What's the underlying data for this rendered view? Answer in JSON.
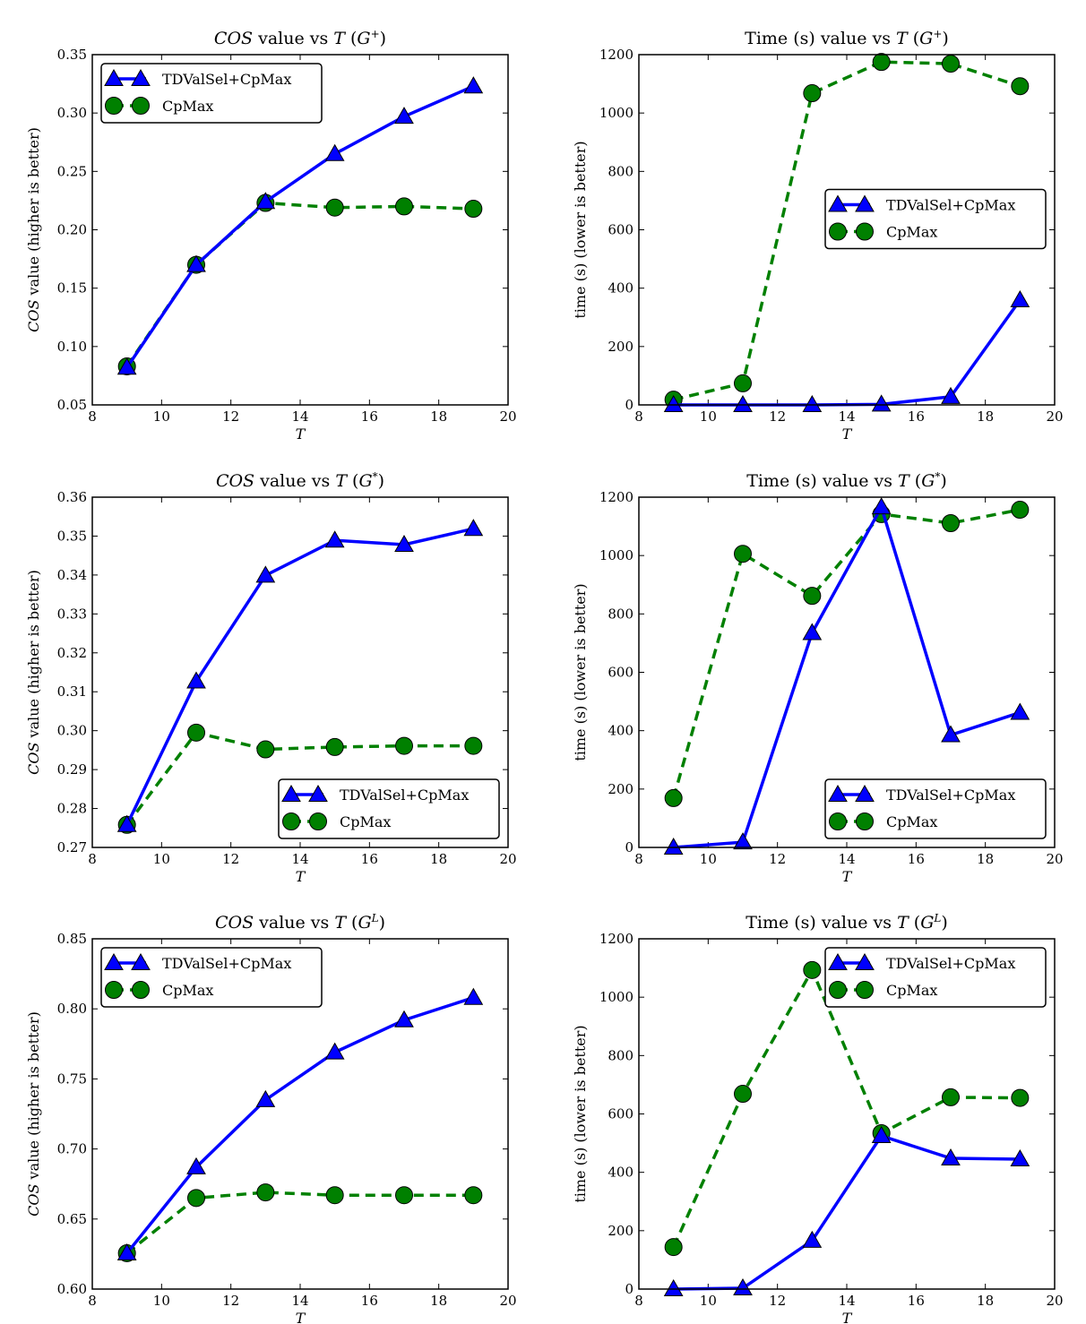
{
  "chart_data": [
    {
      "type": "line",
      "title": [
        {
          "text": "COS",
          "italic": true
        },
        {
          "text": " value vs "
        },
        {
          "text": "T",
          "italic": true
        },
        {
          "text": " ("
        },
        {
          "text": "G",
          "italic": true
        },
        {
          "text": "+",
          "sup": true
        },
        {
          "text": ")"
        }
      ],
      "xlabel": "T",
      "ylabel": [
        {
          "text": "COS",
          "italic": true
        },
        {
          "text": " value (higher is better)"
        }
      ],
      "xlim": [
        8,
        20
      ],
      "ylim": [
        0.05,
        0.35
      ],
      "xticks": [
        "8",
        "10",
        "12",
        "14",
        "16",
        "18",
        "20"
      ],
      "yticks": [
        "0.05",
        "0.10",
        "0.15",
        "0.20",
        "0.25",
        "0.30",
        "0.35"
      ],
      "legend": "upper-left",
      "x": [
        9,
        11,
        13,
        15,
        17,
        19
      ],
      "series": [
        {
          "name": "TDValSel+CpMax",
          "values": [
            0.082,
            0.17,
            0.224,
            0.265,
            0.297,
            0.323
          ],
          "color": "#0000ff",
          "marker": "triangle",
          "style": "solid"
        },
        {
          "name": "CpMax",
          "values": [
            0.083,
            0.17,
            0.223,
            0.219,
            0.22,
            0.218
          ],
          "color": "#008000",
          "marker": "circle",
          "style": "dashed"
        }
      ]
    },
    {
      "type": "line",
      "title": [
        {
          "text": "Time (s) value vs "
        },
        {
          "text": "T",
          "italic": true
        },
        {
          "text": " ("
        },
        {
          "text": "G",
          "italic": true
        },
        {
          "text": "+",
          "sup": true
        },
        {
          "text": ")"
        }
      ],
      "xlabel": "T",
      "ylabel": [
        {
          "text": "time (s) (lower is better)"
        }
      ],
      "xlim": [
        8,
        20
      ],
      "ylim": [
        0,
        1200
      ],
      "xticks": [
        "8",
        "10",
        "12",
        "14",
        "16",
        "18",
        "20"
      ],
      "yticks": [
        "0",
        "200",
        "400",
        "600",
        "800",
        "1000",
        "1200"
      ],
      "legend": "center-right",
      "x": [
        9,
        11,
        13,
        15,
        17,
        19
      ],
      "series": [
        {
          "name": "TDValSel+CpMax",
          "values": [
            0,
            0,
            0,
            2,
            28,
            359
          ],
          "color": "#0000ff",
          "marker": "triangle",
          "style": "solid"
        },
        {
          "name": "CpMax",
          "values": [
            18,
            74,
            1068,
            1175,
            1169,
            1092
          ],
          "color": "#008000",
          "marker": "circle",
          "style": "dashed"
        }
      ]
    },
    {
      "type": "line",
      "title": [
        {
          "text": "COS",
          "italic": true
        },
        {
          "text": " value vs "
        },
        {
          "text": "T",
          "italic": true
        },
        {
          "text": " ("
        },
        {
          "text": "G",
          "italic": true
        },
        {
          "text": "*",
          "sup": true
        },
        {
          "text": ")"
        }
      ],
      "xlabel": "T",
      "ylabel": [
        {
          "text": "COS",
          "italic": true
        },
        {
          "text": " value (higher is better)"
        }
      ],
      "xlim": [
        8,
        20
      ],
      "ylim": [
        0.27,
        0.36
      ],
      "xticks": [
        "8",
        "10",
        "12",
        "14",
        "16",
        "18",
        "20"
      ],
      "yticks": [
        "0.27",
        "0.28",
        "0.29",
        "0.30",
        "0.31",
        "0.32",
        "0.33",
        "0.34",
        "0.35",
        "0.36"
      ],
      "legend": "lower-right",
      "x": [
        9,
        11,
        13,
        15,
        17,
        19
      ],
      "series": [
        {
          "name": "TDValSel+CpMax",
          "values": [
            0.2758,
            0.3127,
            0.3399,
            0.3489,
            0.3478,
            0.3519
          ],
          "color": "#0000ff",
          "marker": "triangle",
          "style": "solid"
        },
        {
          "name": "CpMax",
          "values": [
            0.2758,
            0.2995,
            0.2952,
            0.2958,
            0.2961,
            0.2961
          ],
          "color": "#008000",
          "marker": "circle",
          "style": "dashed"
        }
      ]
    },
    {
      "type": "line",
      "title": [
        {
          "text": "Time (s) value vs "
        },
        {
          "text": "T",
          "italic": true
        },
        {
          "text": " ("
        },
        {
          "text": "G",
          "italic": true
        },
        {
          "text": "*",
          "sup": true
        },
        {
          "text": ")"
        }
      ],
      "xlabel": "T",
      "ylabel": [
        {
          "text": "time (s) (lower is better)"
        }
      ],
      "xlim": [
        8,
        20
      ],
      "ylim": [
        0,
        1200
      ],
      "xticks": [
        "8",
        "10",
        "12",
        "14",
        "16",
        "18",
        "20"
      ],
      "yticks": [
        "0",
        "200",
        "400",
        "600",
        "800",
        "1000",
        "1200"
      ],
      "legend": "lower-right",
      "x": [
        9,
        11,
        13,
        15,
        17,
        19
      ],
      "series": [
        {
          "name": "TDValSel+CpMax",
          "values": [
            0,
            18,
            735,
            1166,
            385,
            462
          ],
          "color": "#0000ff",
          "marker": "triangle",
          "style": "solid"
        },
        {
          "name": "CpMax",
          "values": [
            169,
            1006,
            862,
            1142,
            1111,
            1157
          ],
          "color": "#008000",
          "marker": "circle",
          "style": "dashed"
        }
      ]
    },
    {
      "type": "line",
      "title": [
        {
          "text": "COS",
          "italic": true
        },
        {
          "text": " value vs "
        },
        {
          "text": "T",
          "italic": true
        },
        {
          "text": " ("
        },
        {
          "text": "G",
          "italic": true
        },
        {
          "text": "L",
          "sup": true,
          "italic": true
        },
        {
          "text": ")"
        }
      ],
      "xlabel": "T",
      "ylabel": [
        {
          "text": "COS",
          "italic": true
        },
        {
          "text": " value (higher is better)"
        }
      ],
      "xlim": [
        8,
        20
      ],
      "ylim": [
        0.6,
        0.85
      ],
      "xticks": [
        "8",
        "10",
        "12",
        "14",
        "16",
        "18",
        "20"
      ],
      "yticks": [
        "0.60",
        "0.65",
        "0.70",
        "0.75",
        "0.80",
        "0.85"
      ],
      "legend": "upper-left",
      "x": [
        9,
        11,
        13,
        15,
        17,
        19
      ],
      "series": [
        {
          "name": "TDValSel+CpMax",
          "values": [
            0.6256,
            0.687,
            0.735,
            0.769,
            0.792,
            0.808
          ],
          "color": "#0000ff",
          "marker": "triangle",
          "style": "solid"
        },
        {
          "name": "CpMax",
          "values": [
            0.6256,
            0.665,
            0.669,
            0.667,
            0.667,
            0.667
          ],
          "color": "#008000",
          "marker": "circle",
          "style": "dashed"
        }
      ]
    },
    {
      "type": "line",
      "title": [
        {
          "text": "Time (s) value vs "
        },
        {
          "text": "T",
          "italic": true
        },
        {
          "text": " ("
        },
        {
          "text": "G",
          "italic": true
        },
        {
          "text": "L",
          "sup": true,
          "italic": true
        },
        {
          "text": ")"
        }
      ],
      "xlabel": "T",
      "ylabel": [
        {
          "text": "time (s) (lower is better)"
        }
      ],
      "xlim": [
        8,
        20
      ],
      "ylim": [
        0,
        1200
      ],
      "xticks": [
        "8",
        "10",
        "12",
        "14",
        "16",
        "18",
        "20"
      ],
      "yticks": [
        "0",
        "200",
        "400",
        "600",
        "800",
        "1000",
        "1200"
      ],
      "legend": "upper-right",
      "x": [
        9,
        11,
        13,
        15,
        17,
        19
      ],
      "series": [
        {
          "name": "TDValSel+CpMax",
          "values": [
            0,
            3,
            166,
            525,
            448,
            445
          ],
          "color": "#0000ff",
          "marker": "triangle",
          "style": "solid"
        },
        {
          "name": "CpMax",
          "values": [
            144,
            669,
            1093,
            534,
            657,
            655
          ],
          "color": "#008000",
          "marker": "circle",
          "style": "dashed"
        }
      ]
    }
  ]
}
